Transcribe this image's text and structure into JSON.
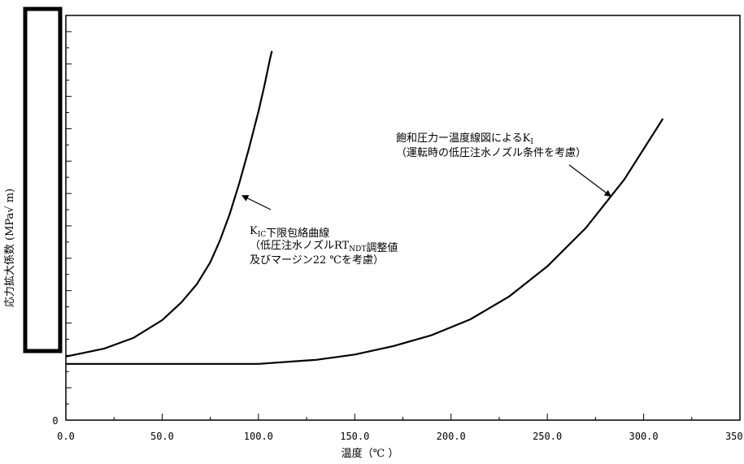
{
  "chart_data": {
    "type": "line",
    "title": "",
    "xlabel": "温度（℃ ）",
    "ylabel": "応力拡大係数 (MPa√ m)",
    "xlim": [
      0,
      350
    ],
    "x_ticks": [
      "0.0",
      "50.0",
      "100.0",
      "150.0",
      "200.0",
      "250.0",
      "300.0",
      "350.0"
    ],
    "y_zero_label": "0",
    "y_ticks_labeled": false,
    "ylim_relative": [
      0,
      1
    ],
    "grid": false,
    "redaction_box": true,
    "series": [
      {
        "key": "kic_envelope",
        "x": [
          0,
          20,
          35,
          50,
          60,
          68,
          75,
          80,
          85,
          90,
          95,
          100,
          103,
          106,
          107
        ],
        "y": [
          0.157,
          0.177,
          0.203,
          0.247,
          0.291,
          0.336,
          0.39,
          0.444,
          0.508,
          0.585,
          0.67,
          0.763,
          0.825,
          0.893,
          0.912
        ]
      },
      {
        "key": "ki_pt_diagram",
        "x": [
          0,
          50,
          100,
          130,
          150,
          170,
          190,
          210,
          230,
          250,
          270,
          290,
          310
        ],
        "y": [
          0.139,
          0.139,
          0.139,
          0.149,
          0.162,
          0.183,
          0.21,
          0.249,
          0.305,
          0.38,
          0.475,
          0.595,
          0.745
        ]
      }
    ],
    "annotations": [
      {
        "key": "kic_label",
        "lines": [
          [
            {
              "t": "K"
            },
            {
              "t": "IC",
              "sub": true
            },
            {
              "t": "下限包絡曲線"
            }
          ],
          [
            {
              "t": "（低圧注水ノズルRT"
            },
            {
              "t": "NDT",
              "sub": true
            },
            {
              "t": "調整値"
            }
          ],
          [
            {
              "t": " 及びマージン22 ℃を考慮）"
            }
          ]
        ],
        "target": [
          91.5,
          0.555
        ]
      },
      {
        "key": "ki_label",
        "lines": [
          [
            {
              "t": "飽和圧力ー温度線図によるK"
            },
            {
              "t": "I",
              "sub": true
            }
          ],
          [
            {
              "t": "（運転時の低圧注水ノズル条件を考慮）"
            }
          ]
        ],
        "target": [
          283,
          0.553
        ]
      }
    ]
  }
}
